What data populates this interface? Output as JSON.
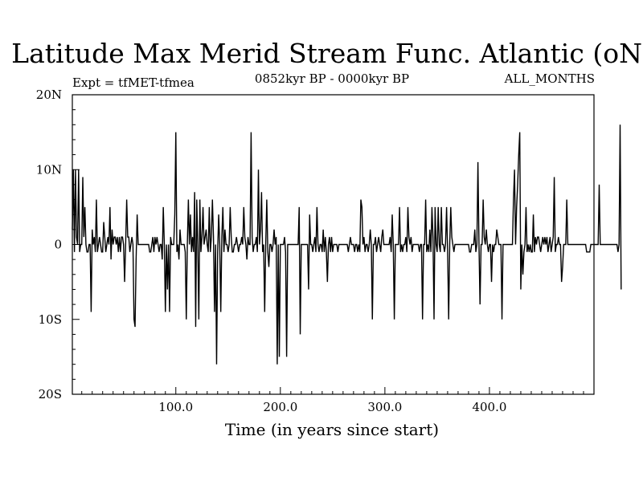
{
  "chart_data": {
    "type": "line",
    "title": "Latitude Max Merid Stream Func. Atlantic (oN)",
    "subtitle_left": "Expt = tfMET-tfmea",
    "subtitle_center": "0852kyr BP - 0000kyr BP",
    "subtitle_right": "ALL_MONTHS",
    "xlabel": "Time (in years since start)",
    "ylabel": "",
    "xlim": [
      1,
      500
    ],
    "ylim": [
      -20,
      20
    ],
    "grid": false,
    "xticks": [
      {
        "value": 100,
        "label": "100.0"
      },
      {
        "value": 200,
        "label": "200.0"
      },
      {
        "value": 300,
        "label": "300.0"
      },
      {
        "value": 400,
        "label": "400.0"
      }
    ],
    "yticks": [
      {
        "value": 20,
        "label": "20N"
      },
      {
        "value": 10,
        "label": "10N"
      },
      {
        "value": 0,
        "label": "0"
      },
      {
        "value": -10,
        "label": "10S"
      },
      {
        "value": -20,
        "label": "20S"
      }
    ],
    "series": [
      {
        "name": "latitude_max_merid_stream_func",
        "color": "#000000",
        "x_start": 1,
        "x_step": 1,
        "values": [
          2,
          10,
          -1,
          10,
          1,
          0,
          10,
          -1,
          0,
          0,
          9,
          1,
          5,
          0,
          -1,
          -1,
          0,
          0,
          -9,
          2,
          0,
          1,
          -1,
          6,
          -1,
          0,
          1,
          0,
          -1,
          -1,
          3,
          1,
          -1,
          0,
          1,
          0,
          5,
          -2,
          2,
          0,
          1,
          1,
          0,
          1,
          -1,
          1,
          -1,
          1,
          1,
          0,
          -5,
          0,
          6,
          1,
          1,
          -1,
          0,
          1,
          0,
          -10,
          -11,
          -2,
          4,
          0,
          0,
          0,
          0,
          0,
          0,
          0,
          0,
          0,
          0,
          0,
          -1,
          -1,
          0,
          1,
          -1,
          1,
          0,
          1,
          0,
          -1,
          0,
          0,
          -2,
          5,
          0,
          -9,
          0,
          -6,
          0,
          -9,
          1,
          0,
          0,
          0,
          4,
          15,
          -1,
          0,
          -2,
          2,
          0,
          0,
          0,
          0,
          -1,
          -10,
          0,
          6,
          0,
          4,
          -1,
          1,
          -1,
          7,
          -11,
          6,
          0,
          -10,
          6,
          -1,
          1,
          5,
          0,
          1,
          2,
          0,
          -1,
          5,
          -1,
          1,
          6,
          1,
          -9,
          0,
          -16,
          -1,
          4,
          0,
          -9,
          1,
          5,
          -1,
          2,
          0,
          0,
          -1,
          0,
          5,
          1,
          -1,
          -1,
          0,
          0,
          1,
          0,
          -1,
          0,
          0,
          1,
          0,
          5,
          1,
          0,
          -2,
          1,
          0,
          0,
          15,
          1,
          -1,
          0,
          0,
          1,
          -1,
          10,
          0,
          2,
          7,
          -1,
          0,
          -9,
          0,
          6,
          -1,
          -3,
          0,
          0,
          -1,
          0,
          2,
          0,
          1,
          -16,
          0,
          -15,
          0,
          0,
          0,
          0,
          1,
          -1,
          -15,
          0,
          0,
          0,
          0,
          0,
          0,
          0,
          0,
          0,
          0,
          0,
          5,
          -12,
          0,
          0,
          0,
          0,
          0,
          0,
          0,
          -6,
          4,
          0,
          0,
          -1,
          0,
          1,
          -1,
          5,
          0,
          -1,
          0,
          0,
          -1,
          2,
          -1,
          1,
          -1,
          -5,
          0,
          1,
          -1,
          1,
          -1,
          0,
          0,
          0,
          0,
          -1,
          0,
          0,
          0,
          0,
          0,
          0,
          0,
          0,
          0,
          -1,
          0,
          1,
          0,
          0,
          0,
          -1,
          0,
          0,
          -1,
          0,
          -1,
          6,
          5,
          0,
          1,
          -1,
          0,
          0,
          -1,
          0,
          2,
          0,
          -10,
          0,
          0,
          1,
          -1,
          0,
          1,
          0,
          -1,
          1,
          2,
          0,
          0,
          0,
          0,
          0,
          0,
          1,
          -1,
          4,
          0,
          -10,
          0,
          0,
          0,
          0,
          5,
          -1,
          0,
          -1,
          0,
          0,
          1,
          -1,
          5,
          1,
          0,
          1,
          -1,
          0,
          0,
          0,
          0,
          0,
          0,
          -1,
          0,
          0,
          -10,
          0,
          0,
          6,
          -1,
          0,
          -1,
          2,
          -1,
          5,
          1,
          -10,
          5,
          0,
          -1,
          5,
          0,
          -1,
          5,
          0,
          0,
          -1,
          0,
          5,
          -1,
          -10,
          0,
          5,
          1,
          0,
          -1,
          0,
          0,
          0,
          0,
          0,
          0,
          0,
          0,
          0,
          0,
          0,
          0,
          0,
          0,
          -1,
          -1,
          0,
          0,
          0,
          2,
          -1,
          0,
          11,
          0,
          -8,
          0,
          0,
          6,
          1,
          0,
          2,
          0,
          -1,
          0,
          0,
          -5,
          0,
          -1,
          0,
          0,
          2,
          1,
          0,
          0,
          0,
          -10,
          0,
          0,
          0,
          0,
          0,
          0,
          0,
          0,
          0,
          0,
          6,
          10,
          0,
          5,
          8,
          12,
          15,
          -6,
          0,
          -4,
          -1,
          0,
          5,
          -1,
          0,
          -1,
          0,
          -1,
          -1,
          4,
          -1,
          1,
          0,
          1,
          1,
          0,
          -1,
          0,
          1,
          0,
          1,
          0,
          1,
          -1,
          0,
          1,
          -1,
          0,
          1,
          9,
          -1,
          0,
          0,
          1,
          0,
          0,
          -5,
          -3,
          0,
          0,
          0,
          6,
          0,
          0,
          0,
          0,
          0,
          0,
          0,
          0,
          0,
          0,
          0,
          0,
          0,
          0,
          0,
          0,
          0,
          0,
          -1,
          -1,
          -1,
          -1,
          0,
          0,
          0,
          0,
          0,
          0,
          0,
          0,
          8,
          0,
          0,
          0,
          0,
          0,
          0,
          0,
          0,
          0,
          0,
          0,
          0,
          0,
          0,
          0,
          0,
          0,
          -1,
          0,
          16,
          -6
        ]
      }
    ]
  }
}
